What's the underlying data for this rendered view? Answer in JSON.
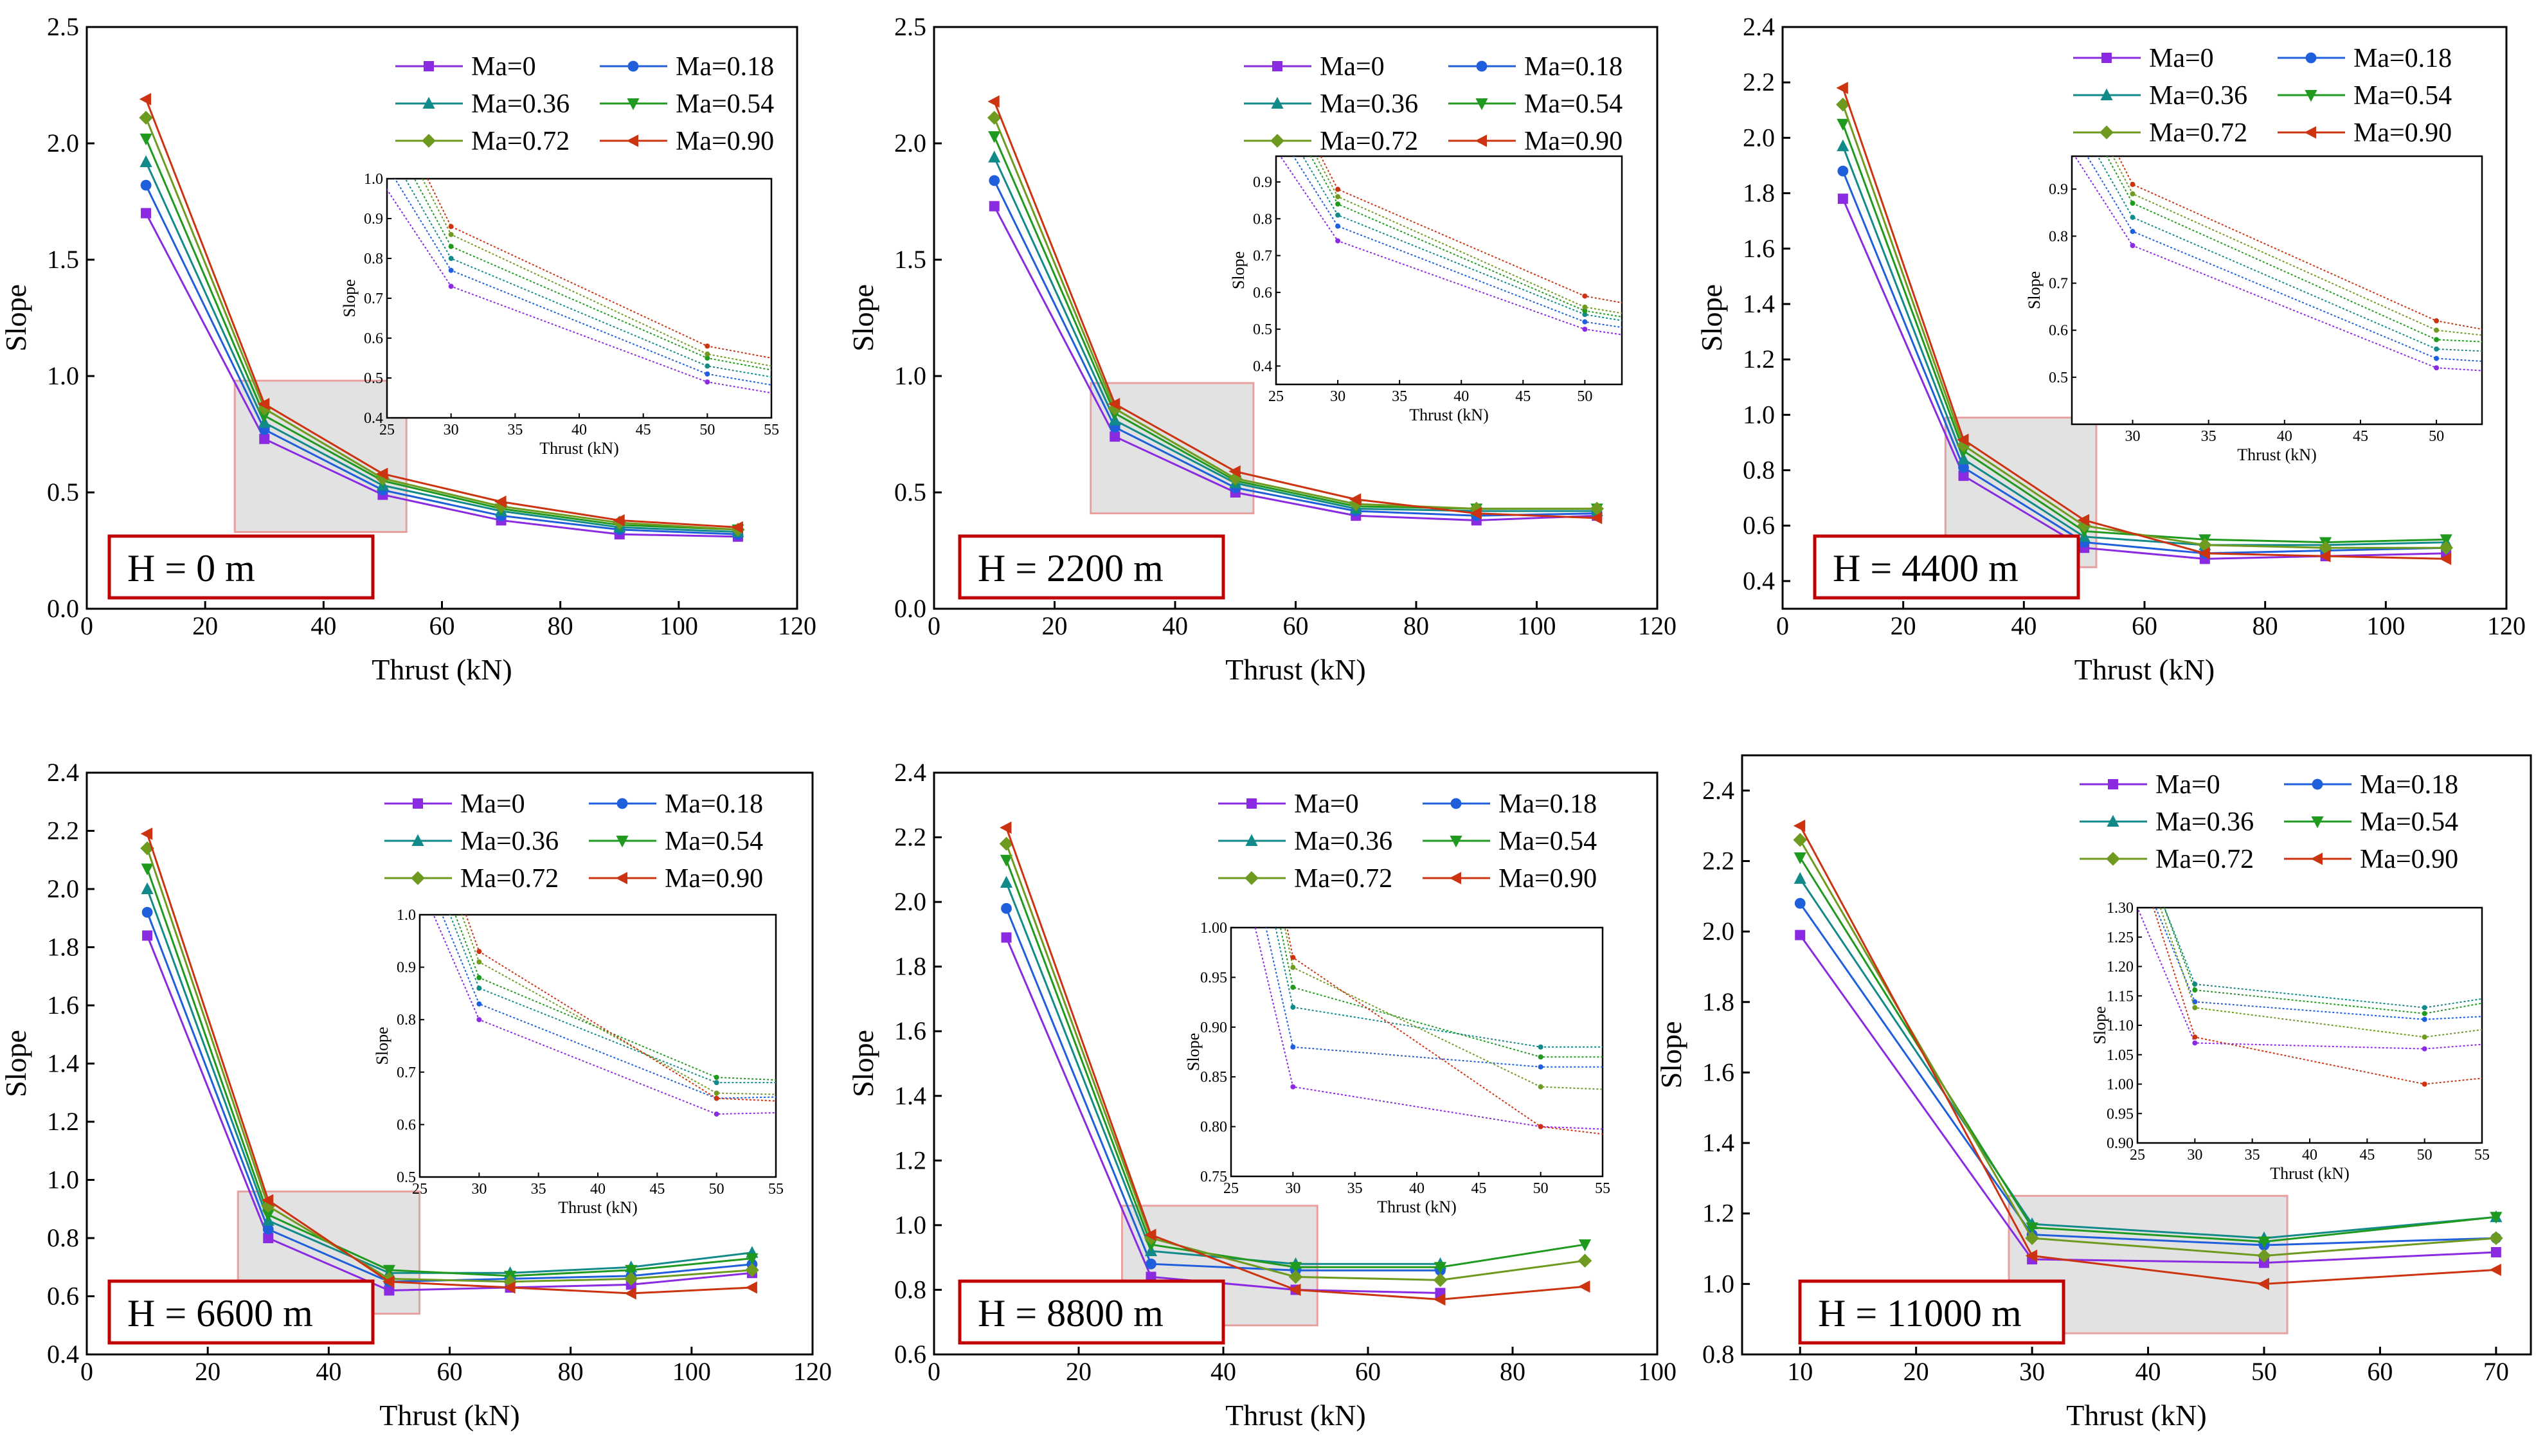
{
  "figure": {
    "series_colors": [
      "#8a2be2",
      "#1f5fdc",
      "#138a8a",
      "#1f9a1f",
      "#6d9a1f",
      "#cc3311"
    ],
    "legend_labels": [
      "Ma=0",
      "Ma=0.18",
      "Ma=0.36",
      "Ma=0.54",
      "Ma=0.72",
      "Ma=0.90"
    ]
  },
  "chart_data": [
    {
      "type": "line",
      "title": "",
      "badge": "H = 0 m",
      "xlabel": "Thrust (kN)",
      "ylabel": "Slope",
      "xlim": [
        0,
        120
      ],
      "ylim": [
        0,
        2.5
      ],
      "xticks": [
        0,
        20,
        40,
        60,
        80,
        100,
        120
      ],
      "yticks": [
        0.0,
        0.5,
        1.0,
        1.5,
        2.0,
        2.5
      ],
      "ytick_labels": [
        "0.0",
        "0.5",
        "1.0",
        "1.5",
        "2.0",
        "2.5"
      ],
      "x": [
        10,
        30,
        50,
        70,
        90,
        110
      ],
      "series": [
        {
          "name": "Ma=0",
          "values": [
            1.7,
            0.73,
            0.49,
            0.38,
            0.32,
            0.31
          ]
        },
        {
          "name": "Ma=0.18",
          "values": [
            1.82,
            0.77,
            0.51,
            0.4,
            0.34,
            0.32
          ]
        },
        {
          "name": "Ma=0.36",
          "values": [
            1.92,
            0.8,
            0.53,
            0.42,
            0.35,
            0.33
          ]
        },
        {
          "name": "Ma=0.54",
          "values": [
            2.02,
            0.83,
            0.55,
            0.43,
            0.36,
            0.34
          ]
        },
        {
          "name": "Ma=0.72",
          "values": [
            2.11,
            0.86,
            0.56,
            0.44,
            0.37,
            0.34
          ]
        },
        {
          "name": "Ma=0.90",
          "values": [
            2.19,
            0.88,
            0.58,
            0.46,
            0.38,
            0.35
          ]
        }
      ],
      "zoom_box": {
        "x": [
          25,
          54
        ],
        "y": [
          0.33,
          0.98
        ]
      },
      "inset": {
        "xlabel": "Thrust (kN)",
        "ylabel": "Slope",
        "xlim": [
          25,
          55
        ],
        "ylim": [
          0.4,
          1.0
        ],
        "xticks": [
          25,
          30,
          35,
          40,
          45,
          50,
          55
        ],
        "yticks": [
          0.4,
          0.5,
          0.6,
          0.7,
          0.8,
          0.9,
          1.0
        ],
        "ytick_labels": [
          "0.4",
          "0.5",
          "0.6",
          "0.7",
          "0.8",
          "0.9",
          "1.0"
        ]
      }
    },
    {
      "type": "line",
      "title": "",
      "badge": "H = 2200 m",
      "xlabel": "Thrust (kN)",
      "ylabel": "Slope",
      "xlim": [
        0,
        120
      ],
      "ylim": [
        0,
        2.5
      ],
      "xticks": [
        0,
        20,
        40,
        60,
        80,
        100,
        120
      ],
      "yticks": [
        0.0,
        0.5,
        1.0,
        1.5,
        2.0,
        2.5
      ],
      "ytick_labels": [
        "0.0",
        "0.5",
        "1.0",
        "1.5",
        "2.0",
        "2.5"
      ],
      "x": [
        10,
        30,
        50,
        70,
        90,
        110
      ],
      "series": [
        {
          "name": "Ma=0",
          "values": [
            1.73,
            0.74,
            0.5,
            0.4,
            0.38,
            0.4
          ]
        },
        {
          "name": "Ma=0.18",
          "values": [
            1.84,
            0.78,
            0.52,
            0.42,
            0.4,
            0.41
          ]
        },
        {
          "name": "Ma=0.36",
          "values": [
            1.94,
            0.81,
            0.54,
            0.43,
            0.42,
            0.42
          ]
        },
        {
          "name": "Ma=0.54",
          "values": [
            2.03,
            0.84,
            0.55,
            0.44,
            0.43,
            0.43
          ]
        },
        {
          "name": "Ma=0.72",
          "values": [
            2.11,
            0.86,
            0.56,
            0.45,
            0.43,
            0.43
          ]
        },
        {
          "name": "Ma=0.90",
          "values": [
            2.18,
            0.88,
            0.59,
            0.47,
            0.41,
            0.39
          ]
        }
      ],
      "zoom_box": {
        "x": [
          26,
          53
        ],
        "y": [
          0.41,
          0.97
        ]
      },
      "inset": {
        "xlabel": "Thrust (kN)",
        "ylabel": "Slope",
        "xlim": [
          25,
          53
        ],
        "ylim": [
          0.35,
          0.97
        ],
        "xticks": [
          25,
          30,
          35,
          40,
          45,
          50
        ],
        "yticks": [
          0.4,
          0.5,
          0.6,
          0.7,
          0.8,
          0.9
        ],
        "ytick_labels": [
          "0.4",
          "0.5",
          "0.6",
          "0.7",
          "0.8",
          "0.9"
        ]
      }
    },
    {
      "type": "line",
      "title": "",
      "badge": "H = 4400 m",
      "xlabel": "Thrust (kN)",
      "ylabel": "Slope",
      "xlim": [
        0,
        120
      ],
      "ylim": [
        0.3,
        2.4
      ],
      "xticks": [
        0,
        20,
        40,
        60,
        80,
        100,
        120
      ],
      "yticks": [
        0.4,
        0.6,
        0.8,
        1.0,
        1.2,
        1.4,
        1.6,
        1.8,
        2.0,
        2.2,
        2.4
      ],
      "ytick_labels": [
        "0.4",
        "0.6",
        "0.8",
        "1.0",
        "1.2",
        "1.4",
        "1.6",
        "1.8",
        "2.0",
        "2.2",
        "2.4"
      ],
      "x": [
        10,
        30,
        50,
        70,
        90,
        110
      ],
      "series": [
        {
          "name": "Ma=0",
          "values": [
            1.78,
            0.78,
            0.52,
            0.48,
            0.49,
            0.5
          ]
        },
        {
          "name": "Ma=0.18",
          "values": [
            1.88,
            0.81,
            0.54,
            0.5,
            0.51,
            0.52
          ]
        },
        {
          "name": "Ma=0.36",
          "values": [
            1.97,
            0.84,
            0.56,
            0.53,
            0.53,
            0.54
          ]
        },
        {
          "name": "Ma=0.54",
          "values": [
            2.05,
            0.87,
            0.58,
            0.55,
            0.54,
            0.55
          ]
        },
        {
          "name": "Ma=0.72",
          "values": [
            2.12,
            0.89,
            0.6,
            0.53,
            0.52,
            0.52
          ]
        },
        {
          "name": "Ma=0.90",
          "values": [
            2.18,
            0.91,
            0.62,
            0.5,
            0.49,
            0.48
          ]
        }
      ],
      "zoom_box": {
        "x": [
          27,
          52
        ],
        "y": [
          0.45,
          0.99
        ]
      },
      "inset": {
        "xlabel": "Thrust (kN)",
        "ylabel": "Slope",
        "xlim": [
          26,
          53
        ],
        "ylim": [
          0.4,
          0.97
        ],
        "xticks": [
          30,
          35,
          40,
          45,
          50
        ],
        "yticks": [
          0.5,
          0.6,
          0.7,
          0.8,
          0.9
        ],
        "ytick_labels": [
          "0.5",
          "0.6",
          "0.7",
          "0.8",
          "0.9"
        ]
      }
    },
    {
      "type": "line",
      "title": "",
      "badge": "H = 6600 m",
      "xlabel": "Thrust (kN)",
      "ylabel": "Slope",
      "xlim": [
        0,
        120
      ],
      "ylim": [
        0.4,
        2.4
      ],
      "xticks": [
        0,
        20,
        40,
        60,
        80,
        100,
        120
      ],
      "yticks": [
        0.4,
        0.6,
        0.8,
        1.0,
        1.2,
        1.4,
        1.6,
        1.8,
        2.0,
        2.2,
        2.4
      ],
      "ytick_labels": [
        "0.4",
        "0.6",
        "0.8",
        "1.0",
        "1.2",
        "1.4",
        "1.6",
        "1.8",
        "2.0",
        "2.2",
        "2.4"
      ],
      "x": [
        10,
        30,
        50,
        70,
        90,
        110
      ],
      "series": [
        {
          "name": "Ma=0",
          "values": [
            1.84,
            0.8,
            0.62,
            0.63,
            0.64,
            0.68
          ]
        },
        {
          "name": "Ma=0.18",
          "values": [
            1.92,
            0.83,
            0.65,
            0.66,
            0.67,
            0.71
          ]
        },
        {
          "name": "Ma=0.36",
          "values": [
            2.0,
            0.86,
            0.68,
            0.68,
            0.7,
            0.75
          ]
        },
        {
          "name": "Ma=0.54",
          "values": [
            2.07,
            0.88,
            0.69,
            0.67,
            0.69,
            0.73
          ]
        },
        {
          "name": "Ma=0.72",
          "values": [
            2.14,
            0.91,
            0.66,
            0.65,
            0.66,
            0.69
          ]
        },
        {
          "name": "Ma=0.90",
          "values": [
            2.19,
            0.93,
            0.65,
            0.63,
            0.61,
            0.63
          ]
        }
      ],
      "zoom_box": {
        "x": [
          25,
          55
        ],
        "y": [
          0.54,
          0.96
        ]
      },
      "inset": {
        "xlabel": "Thrust (kN)",
        "ylabel": "Slope",
        "xlim": [
          25,
          55
        ],
        "ylim": [
          0.5,
          1.0
        ],
        "xticks": [
          25,
          30,
          35,
          40,
          45,
          50,
          55
        ],
        "yticks": [
          0.5,
          0.6,
          0.7,
          0.8,
          0.9,
          1.0
        ],
        "ytick_labels": [
          "0.5",
          "0.6",
          "0.7",
          "0.8",
          "0.9",
          "1.0"
        ]
      }
    },
    {
      "type": "line",
      "title": "",
      "badge": "H = 8800 m",
      "xlabel": "Thrust (kN)",
      "ylabel": "Slope",
      "xlim": [
        0,
        100
      ],
      "ylim": [
        0.6,
        2.4
      ],
      "xticks": [
        0,
        20,
        40,
        60,
        80,
        100
      ],
      "yticks": [
        0.6,
        0.8,
        1.0,
        1.2,
        1.4,
        1.6,
        1.8,
        2.0,
        2.2,
        2.4
      ],
      "ytick_labels": [
        "0.6",
        "0.8",
        "1.0",
        "1.2",
        "1.4",
        "1.6",
        "1.8",
        "2.0",
        "2.2",
        "2.4"
      ],
      "x": [
        10,
        30,
        50,
        70,
        90
      ],
      "series": [
        {
          "name": "Ma=0",
          "values": [
            1.89,
            0.84,
            0.8,
            0.79,
            null
          ]
        },
        {
          "name": "Ma=0.18",
          "values": [
            1.98,
            0.88,
            0.86,
            0.86,
            null
          ]
        },
        {
          "name": "Ma=0.36",
          "values": [
            2.06,
            0.92,
            0.88,
            0.88,
            null
          ]
        },
        {
          "name": "Ma=0.54",
          "values": [
            2.13,
            0.94,
            0.87,
            0.87,
            0.94
          ]
        },
        {
          "name": "Ma=0.72",
          "values": [
            2.18,
            0.96,
            0.84,
            0.83,
            0.89
          ]
        },
        {
          "name": "Ma=0.90",
          "values": [
            2.23,
            0.97,
            0.8,
            0.77,
            0.81
          ]
        }
      ],
      "zoom_box": {
        "x": [
          26,
          53
        ],
        "y": [
          0.69,
          1.06
        ]
      },
      "inset": {
        "xlabel": "Thrust (kN)",
        "ylabel": "Slope",
        "xlim": [
          25,
          55
        ],
        "ylim": [
          0.75,
          1.0
        ],
        "xticks": [
          25,
          30,
          35,
          40,
          45,
          50,
          55
        ],
        "yticks": [
          0.75,
          0.8,
          0.85,
          0.9,
          0.95,
          1.0
        ],
        "ytick_labels": [
          "0.75",
          "0.80",
          "0.85",
          "0.90",
          "0.95",
          "1.00"
        ]
      }
    },
    {
      "type": "line",
      "title": "",
      "badge": "H = 11000 m",
      "xlabel": "Thrust (kN)",
      "ylabel": "Slope",
      "xlim": [
        5,
        73
      ],
      "ylim": [
        0.8,
        2.5
      ],
      "xticks": [
        10,
        20,
        30,
        40,
        50,
        60,
        70
      ],
      "yticks": [
        0.8,
        1.0,
        1.2,
        1.4,
        1.6,
        1.8,
        2.0,
        2.2,
        2.4
      ],
      "ytick_labels": [
        "0.8",
        "1.0",
        "1.2",
        "1.4",
        "1.6",
        "1.8",
        "2.0",
        "2.2",
        "2.4"
      ],
      "x": [
        10,
        30,
        50,
        70
      ],
      "series": [
        {
          "name": "Ma=0",
          "values": [
            1.99,
            1.07,
            1.06,
            1.09
          ]
        },
        {
          "name": "Ma=0.18",
          "values": [
            2.08,
            1.14,
            1.11,
            1.13
          ]
        },
        {
          "name": "Ma=0.36",
          "values": [
            2.15,
            1.17,
            1.13,
            1.19
          ]
        },
        {
          "name": "Ma=0.54",
          "values": [
            2.21,
            1.16,
            1.12,
            1.19
          ]
        },
        {
          "name": "Ma=0.72",
          "values": [
            2.26,
            1.13,
            1.08,
            1.13
          ]
        },
        {
          "name": "Ma=0.90",
          "values": [
            2.3,
            1.08,
            1.0,
            1.04
          ]
        }
      ],
      "zoom_box": {
        "x": [
          28,
          52
        ],
        "y": [
          0.86,
          1.25
        ]
      },
      "inset": {
        "xlabel": "Thrust (kN)",
        "ylabel": "Slope",
        "xlim": [
          25,
          55
        ],
        "ylim": [
          0.9,
          1.3
        ],
        "xticks": [
          25,
          30,
          35,
          40,
          45,
          50,
          55
        ],
        "yticks": [
          0.9,
          0.95,
          1.0,
          1.05,
          1.1,
          1.15,
          1.2,
          1.25,
          1.3
        ],
        "ytick_labels": [
          "0.90",
          "0.95",
          "1.00",
          "1.05",
          "1.10",
          "1.15",
          "1.20",
          "1.25",
          "1.30"
        ]
      }
    }
  ]
}
